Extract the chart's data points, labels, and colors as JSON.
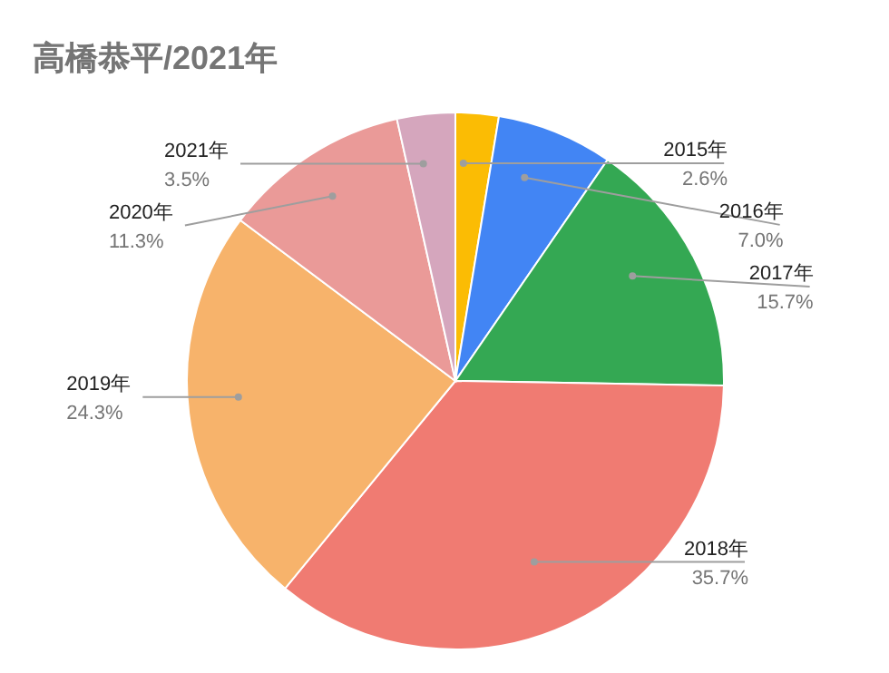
{
  "chart_data": {
    "type": "pie",
    "title": "高橋恭平/2021年",
    "categories": [
      "2015年",
      "2016年",
      "2017年",
      "2018年",
      "2019年",
      "2020年",
      "2021年"
    ],
    "values": [
      2.6,
      7.0,
      15.7,
      35.7,
      24.3,
      11.3,
      3.5
    ],
    "value_labels": [
      "2.6%",
      "7.0%",
      "15.7%",
      "35.7%",
      "24.3%",
      "11.3%",
      "3.5%"
    ],
    "colors": [
      "#fbbc04",
      "#4285f4",
      "#34a853",
      "#f07b72",
      "#f7b36b",
      "#ea9a98",
      "#d5a6bd"
    ],
    "legend": false
  }
}
